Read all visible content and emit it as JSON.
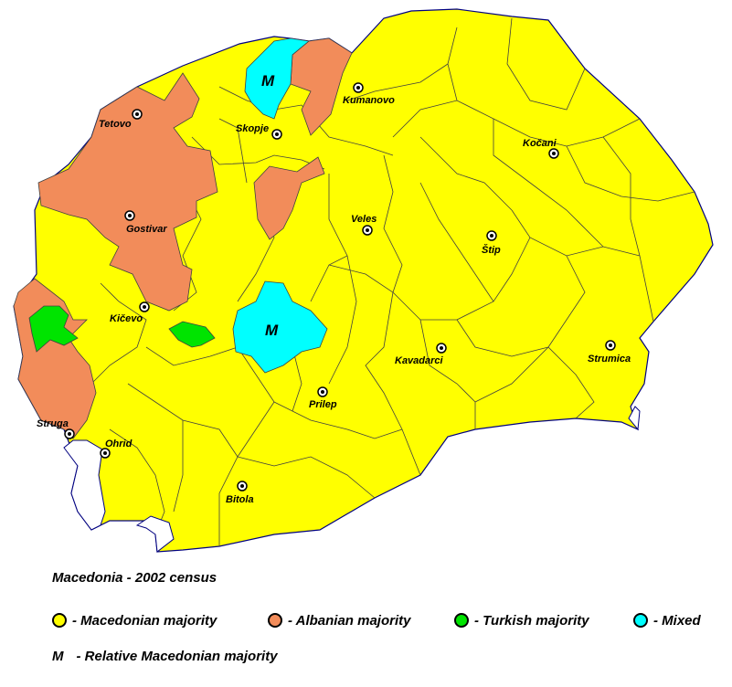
{
  "colors": {
    "macedonian": "#ffff00",
    "albanian": "#f28c5a",
    "turkish": "#00e400",
    "mixed": "#00ffff",
    "border": "#404040",
    "country_border": "#000080"
  },
  "cities": [
    {
      "name": "Tetovo"
    },
    {
      "name": "Skopje"
    },
    {
      "name": "Kumanovo"
    },
    {
      "name": "Kočani"
    },
    {
      "name": "Gostivar"
    },
    {
      "name": "Veles"
    },
    {
      "name": "Štip"
    },
    {
      "name": "Kičevo"
    },
    {
      "name": "Kavadarci"
    },
    {
      "name": "Strumica"
    },
    {
      "name": "Prilep"
    },
    {
      "name": "Struga"
    },
    {
      "name": "Ohrid"
    },
    {
      "name": "Bitola"
    }
  ],
  "map_marks": {
    "m1": "M",
    "m2": "M"
  },
  "legend": {
    "title": "Macedonia - 2002 census",
    "items": [
      {
        "label": "- Macedonian majority",
        "color": "#ffff00"
      },
      {
        "label": "- Albanian majority",
        "color": "#f28c5a"
      },
      {
        "label": "- Turkish majority",
        "color": "#00e400"
      },
      {
        "label": "- Mixed",
        "color": "#00ffff"
      }
    ],
    "note_mark": "M",
    "note_text": "- Relative Macedonian majority"
  }
}
